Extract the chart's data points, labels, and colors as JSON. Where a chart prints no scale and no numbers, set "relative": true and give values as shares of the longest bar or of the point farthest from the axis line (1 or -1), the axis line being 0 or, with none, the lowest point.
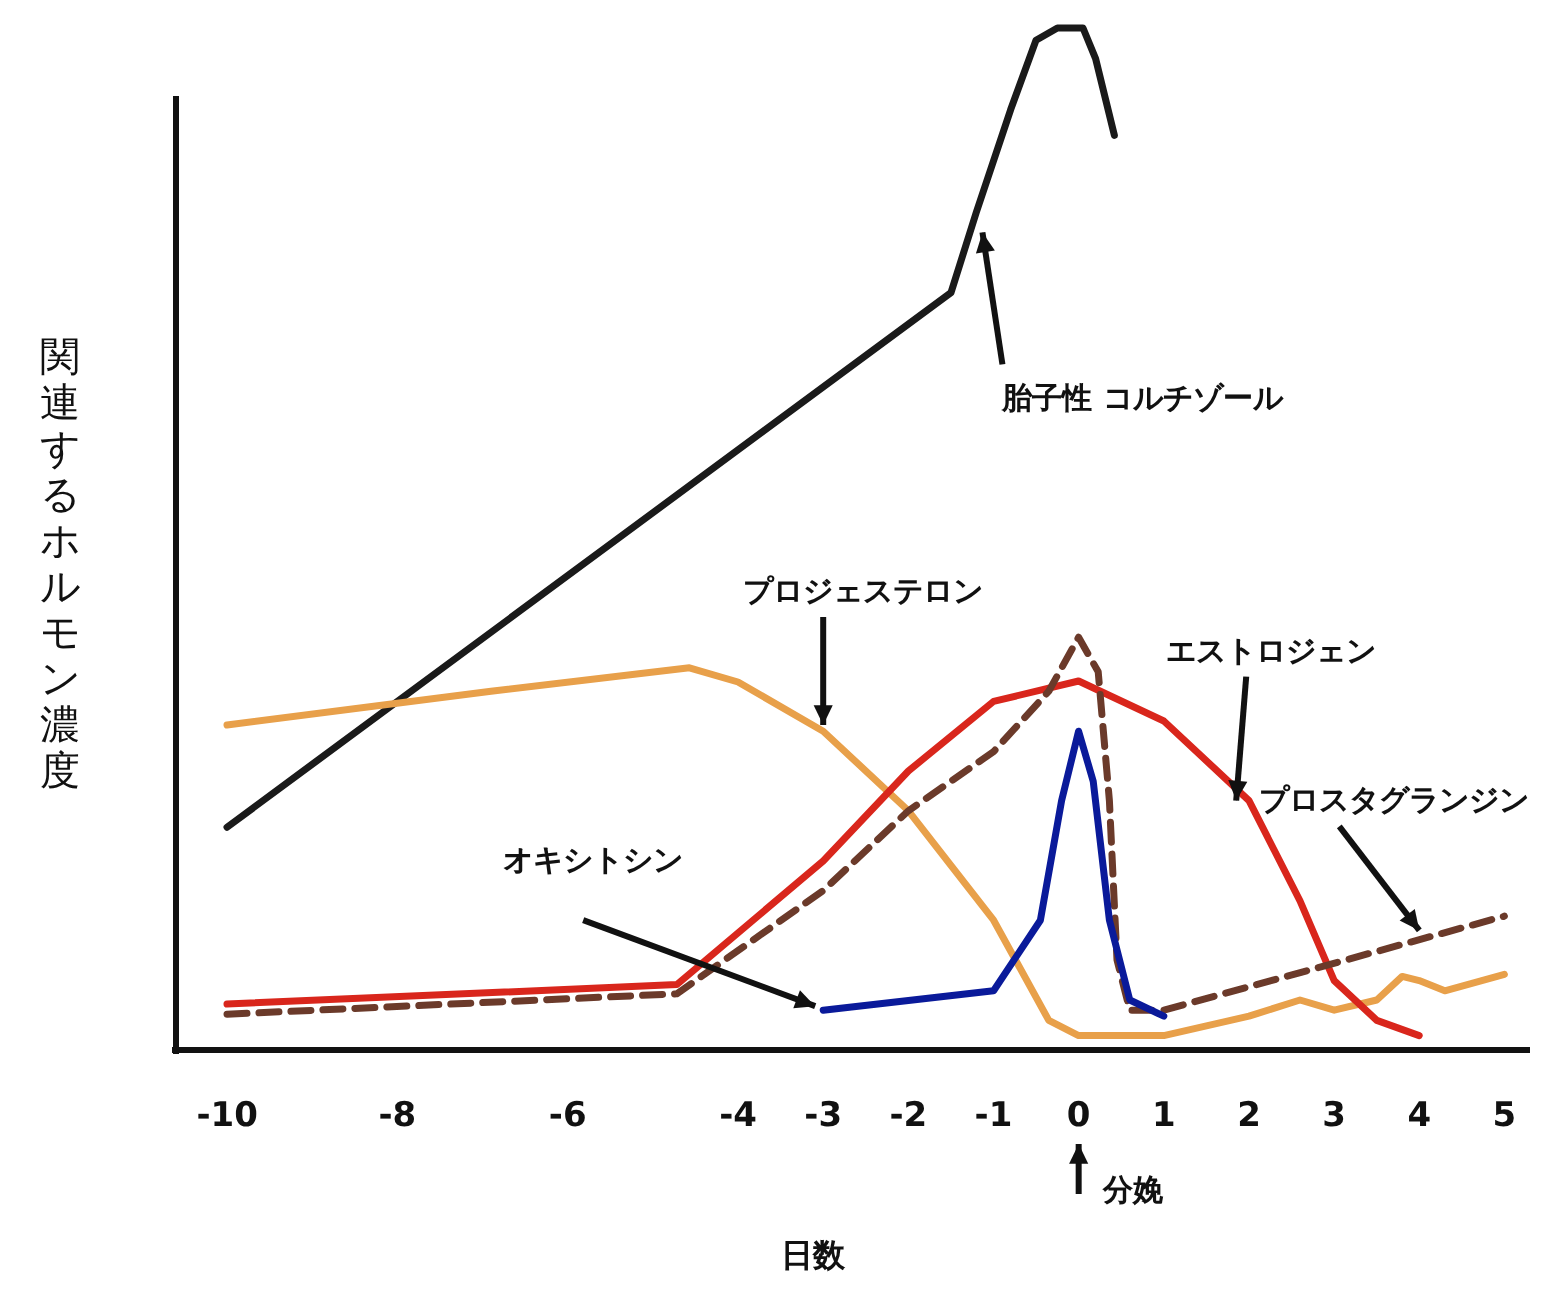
{
  "chart_data": {
    "type": "line",
    "relative": true,
    "xlabel": "日数",
    "ylabel": "関連するホルモン濃度",
    "xlim": [
      -10.6,
      5.3
    ],
    "xticks": [
      {
        "value": -10,
        "label": "-10"
      },
      {
        "value": -8,
        "label": "-8"
      },
      {
        "value": -6,
        "label": "-6"
      },
      {
        "value": -4,
        "label": "-4"
      },
      {
        "value": -3,
        "label": "-3"
      },
      {
        "value": -2,
        "label": "-2"
      },
      {
        "value": -1,
        "label": "-1"
      },
      0,
      1,
      2,
      3,
      4,
      5
    ],
    "series": [
      {
        "color": "#1a1a1a",
        "x": [
          -10,
          -1.5,
          -1.2,
          -0.8,
          -0.5,
          -0.25,
          0.05,
          0.2,
          0.42
        ],
        "values": [
          0.218,
          0.741,
          0.82,
          0.92,
          0.988,
          1.0,
          1.0,
          0.97,
          0.895
        ]
      },
      {
        "color": "#e8a04a",
        "x": [
          -10,
          -6.9,
          -4.57,
          -4,
          -3,
          -2,
          -1,
          -0.35,
          0,
          1,
          2,
          2.6,
          3,
          3.5,
          3.8,
          4,
          4.3,
          5
        ],
        "values": [
          0.318,
          0.351,
          0.374,
          0.36,
          0.312,
          0.234,
          0.127,
          0.029,
          0.014,
          0.014,
          0.033,
          0.049,
          0.039,
          0.049,
          0.072,
          0.068,
          0.058,
          0.074
        ]
      },
      {
        "color": "#d9261c",
        "x": [
          -10,
          -4.72,
          -3,
          -2,
          -1,
          0,
          1,
          2,
          2.6,
          3,
          3.5,
          4
        ],
        "values": [
          0.045,
          0.064,
          0.185,
          0.273,
          0.341,
          0.361,
          0.322,
          0.244,
          0.146,
          0.068,
          0.029,
          0.014
        ]
      },
      {
        "color": "#6b3a2a",
        "line_style": "dashed",
        "x": [
          -10,
          -4.72,
          -3,
          -2,
          -1,
          -0.35,
          0,
          0.23,
          0.36,
          0.45,
          0.6,
          1,
          5
        ],
        "values": [
          0.035,
          0.055,
          0.156,
          0.234,
          0.292,
          0.351,
          0.404,
          0.37,
          0.244,
          0.088,
          0.039,
          0.039,
          0.131
        ]
      },
      {
        "color": "#0a1a9a",
        "x": [
          -3,
          -1,
          -0.45,
          -0.2,
          0,
          0.17,
          0.36,
          0.6,
          1
        ],
        "values": [
          0.039,
          0.058,
          0.127,
          0.244,
          0.312,
          0.263,
          0.127,
          0.049,
          0.033
        ]
      }
    ],
    "annotations": [
      {
        "text": "胎子性 コルチゾール",
        "x": -1.13,
        "y": 0.8
      },
      {
        "text": "プロジェステロン",
        "x": -3,
        "y": 0.318
      },
      {
        "text": "エストロジェン",
        "x": 1.85,
        "y": 0.244
      },
      {
        "text": "プロスタグランジン",
        "x": 4,
        "y": 0.117
      },
      "オキシトシン",
      "分娩"
    ]
  }
}
